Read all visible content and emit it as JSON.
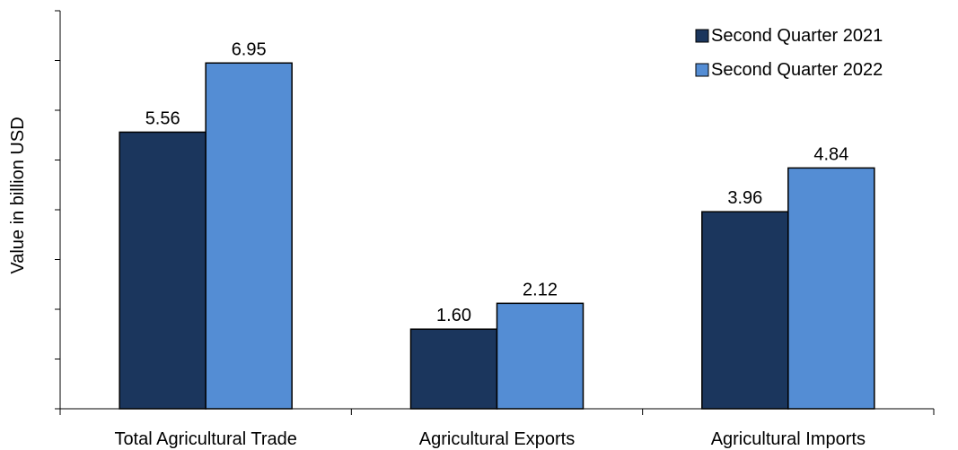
{
  "chart_data": {
    "type": "bar",
    "title": "",
    "xlabel": "",
    "ylabel": "Value in billion USD",
    "ylim": [
      0,
      8
    ],
    "y_tick_step": 1,
    "grid": false,
    "legend_position": "top-right",
    "categories": [
      "Total Agricultural Trade",
      "Agricultural Exports",
      "Agricultural Imports"
    ],
    "series": [
      {
        "name": "Second Quarter 2021",
        "color": "#1b365d",
        "values": [
          5.56,
          1.6,
          3.96
        ],
        "labels": [
          "5.56",
          "1.60",
          "3.96"
        ]
      },
      {
        "name": "Second Quarter 2022",
        "color": "#548dd4",
        "values": [
          6.95,
          2.12,
          4.84
        ],
        "labels": [
          "6.95",
          "2.12",
          "4.84"
        ]
      }
    ]
  }
}
